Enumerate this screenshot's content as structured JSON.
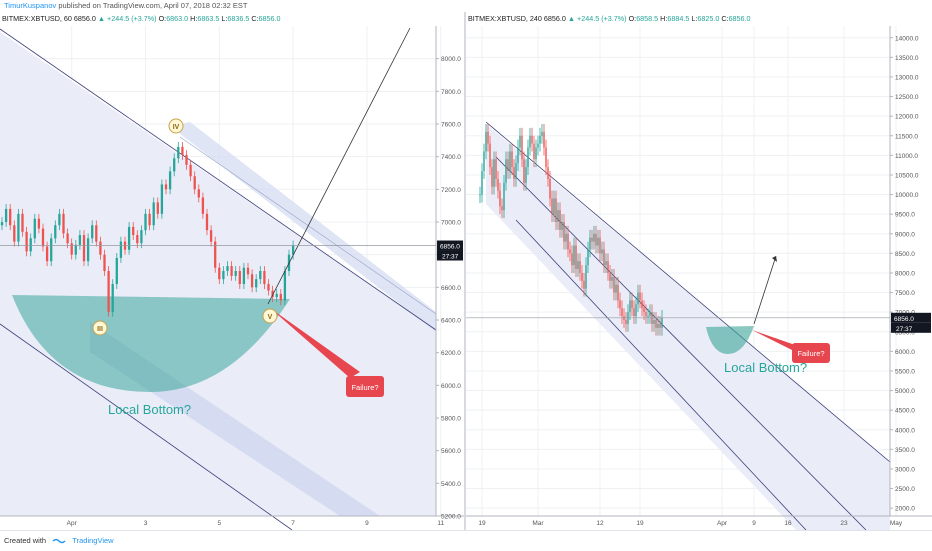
{
  "header": {
    "author": "TimurKuspanov",
    "published": "published on TradingView.com, April 07, 2018 02:32 EST"
  },
  "footer": {
    "created_with": "Created with",
    "brand": "TradingView"
  },
  "colors": {
    "up": "#26a69a",
    "down": "#ef5350",
    "fill_channel": "#c9cff0",
    "bowl": "#3aa59a",
    "failure": "#e8464f",
    "channel_line": "#3c3f7a",
    "text_teal": "#26a69a"
  },
  "chart_data": [
    {
      "type": "candlestick",
      "symbol": "BITMEX:XBTUSD",
      "interval": "60",
      "legend": {
        "last": "6856.0",
        "change": "+244.5 (+3.7%)",
        "open": "6863.0",
        "high": "6863.5",
        "low": "6836.5",
        "close": "6856.0"
      },
      "ylim": [
        5200,
        8200
      ],
      "yticks": [
        5200,
        5400,
        5600,
        5800,
        6000,
        6200,
        6400,
        6600,
        6800,
        7000,
        7200,
        7400,
        7600,
        7800,
        8000
      ],
      "xticks": [
        {
          "i": 17,
          "label": "Apr"
        },
        {
          "i": 35,
          "label": "3"
        },
        {
          "i": 53,
          "label": "5"
        },
        {
          "i": 71,
          "label": "7"
        },
        {
          "i": 89,
          "label": "9"
        },
        {
          "i": 107,
          "label": "11"
        }
      ],
      "xcount": 116,
      "price_label": "6856.0",
      "countdown": "27:37",
      "series": [
        {
          "name": "BITMEX:XBTUSD",
          "close": [
            7000,
            7080,
            6980,
            6880,
            7050,
            6940,
            6820,
            6900,
            7020,
            6960,
            6850,
            6760,
            6900,
            6980,
            7050,
            6930,
            6870,
            6800,
            6860,
            6920,
            6760,
            6900,
            6980,
            6880,
            6800,
            6700,
            6450,
            6620,
            6780,
            6880,
            6830,
            6970,
            6920,
            6870,
            6950,
            7050,
            6980,
            7120,
            7050,
            7230,
            7200,
            7310,
            7390,
            7460,
            7410,
            7350,
            7280,
            7200,
            7150,
            7050,
            6950,
            6880,
            6720,
            6650,
            6700,
            6730,
            6670,
            6700,
            6620,
            6720,
            6680,
            6600,
            6650,
            6700,
            6620,
            6580,
            6540,
            6560,
            6520,
            6700,
            6800,
            6856
          ]
        }
      ]
    },
    {
      "type": "candlestick",
      "symbol": "BITMEX:XBTUSD",
      "interval": "240",
      "legend": {
        "last": "6856.0",
        "change": "+244.5 (+3.7%)",
        "open": "6858.5",
        "high": "6884.5",
        "low": "6825.0",
        "close": "6856.0"
      },
      "ylim": [
        1800,
        14300
      ],
      "yticks": [
        2000,
        2500,
        3000,
        3500,
        4000,
        4500,
        5000,
        5500,
        6000,
        6500,
        7000,
        7500,
        8000,
        8500,
        9000,
        9500,
        10000,
        10500,
        11000,
        11500,
        12000,
        12500,
        13000,
        13500,
        14000
      ],
      "xticks": [
        {
          "i": 1,
          "label": "19"
        },
        {
          "i": 29,
          "label": "Mar"
        },
        {
          "i": 60,
          "label": "12"
        },
        {
          "i": 80,
          "label": "19"
        },
        {
          "i": 121,
          "label": "Apr"
        },
        {
          "i": 137,
          "label": "9"
        },
        {
          "i": 154,
          "label": "16"
        },
        {
          "i": 182,
          "label": "23"
        },
        {
          "i": 208,
          "label": "May"
        }
      ],
      "xcount": 208,
      "price_label": "6856.0",
      "countdown": "27:37",
      "series": [
        {
          "name": "BITMEX:XBTUSD",
          "close": [
            10000,
            10600,
            11100,
            11600,
            11300,
            10700,
            10200,
            10900,
            10400,
            10100,
            9700,
            9600,
            10300,
            10900,
            10600,
            11100,
            10700,
            10400,
            10800,
            11200,
            11500,
            10900,
            10300,
            10700,
            11200,
            11500,
            11300,
            10900,
            11200,
            11300,
            11500,
            11600,
            11200,
            10700,
            10400,
            9900,
            9500,
            9900,
            9300,
            9600,
            9100,
            9300,
            8800,
            9000,
            8600,
            8500,
            8200,
            8700,
            8100,
            8300,
            8000,
            7800,
            7600,
            8200,
            8600,
            8900,
            8800,
            9000,
            8700,
            8900,
            8500,
            8600,
            8200,
            8300,
            8000,
            7800,
            7900,
            7500,
            7700,
            7300,
            7100,
            6900,
            6800,
            6700,
            7000,
            7300,
            7100,
            6900,
            7200,
            7500,
            7300,
            7100,
            7000,
            6900,
            6900,
            7000,
            6700,
            6800,
            6600,
            6700,
            6600,
            6856
          ]
        }
      ]
    }
  ],
  "annotations": {
    "left": {
      "wave_iii": "III",
      "wave_iv": "IV",
      "wave_v": "V",
      "failure_label": "Failure?",
      "bottom_label": "Local Bottom?"
    },
    "right": {
      "failure_label": "Failure?",
      "bottom_label": "Local Bottom?"
    }
  }
}
